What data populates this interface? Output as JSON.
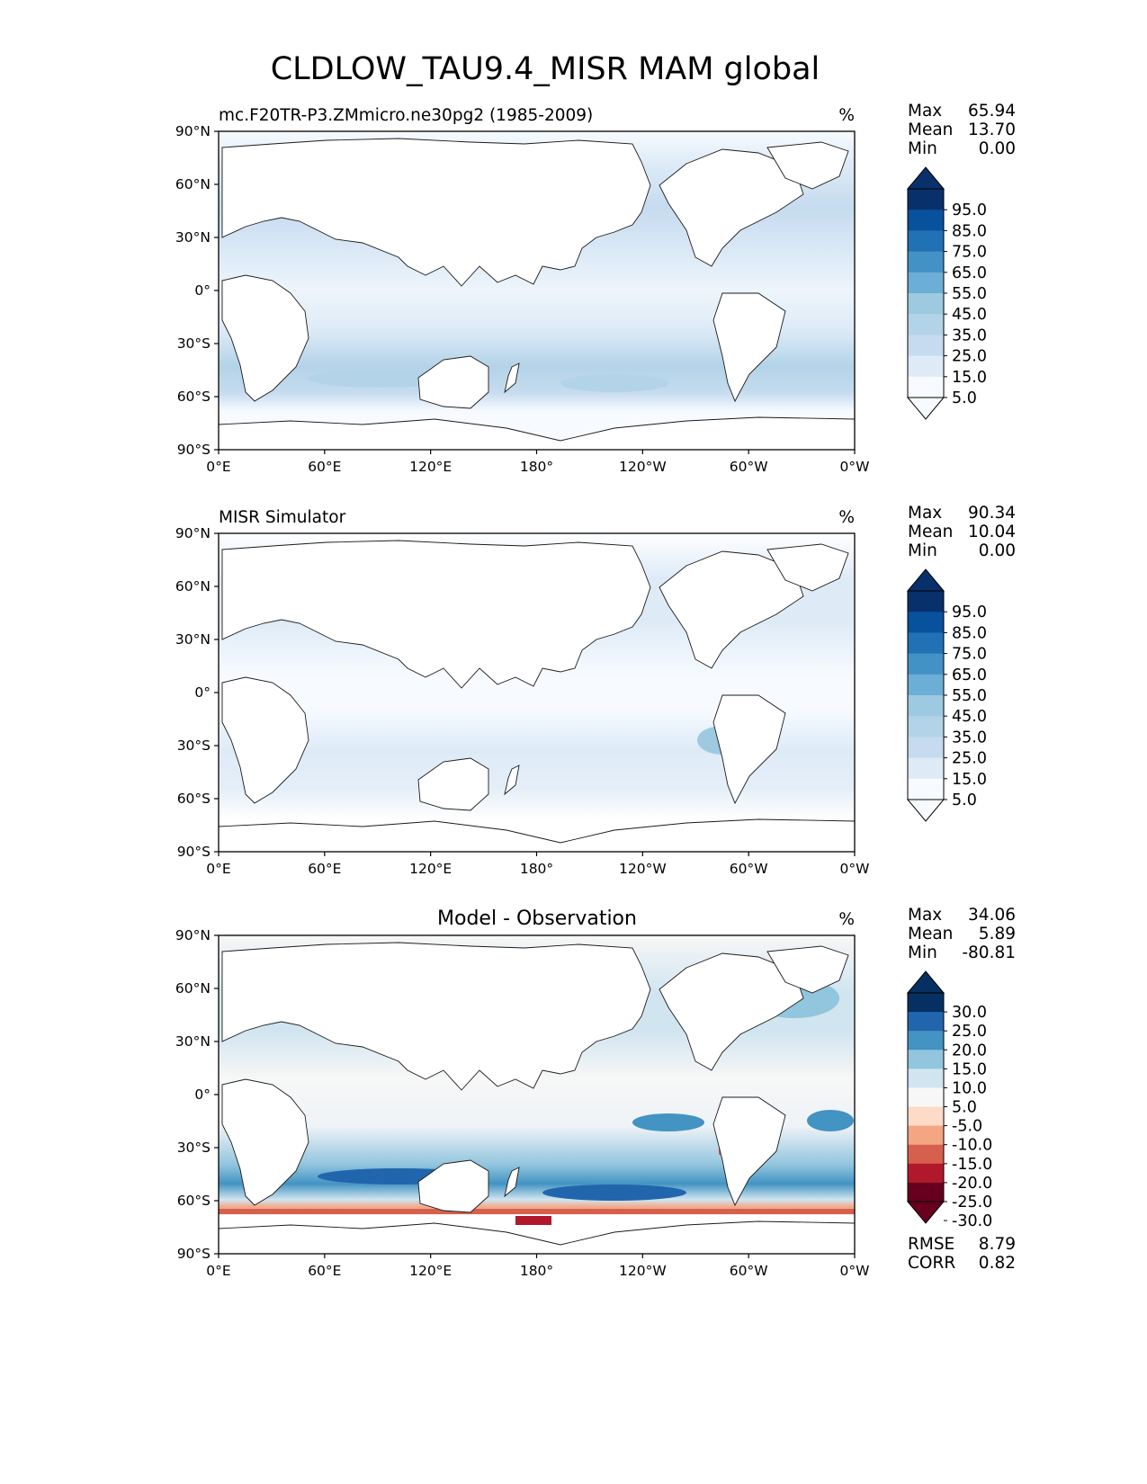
{
  "figure": {
    "title": "CLDLOW_TAU9.4_MISR MAM global",
    "x_ticks": [
      "0°E",
      "60°E",
      "120°E",
      "180°",
      "120°W",
      "60°W",
      "0°W"
    ],
    "y_ticks": [
      "90°N",
      "60°N",
      "30°N",
      "0°",
      "30°S",
      "60°S",
      "90°S"
    ],
    "units": "%"
  },
  "colormaps": {
    "blues": [
      "#f7fbff",
      "#deebf7",
      "#c6dbef",
      "#b3d3e8",
      "#9ecae1",
      "#6baed6",
      "#4292c6",
      "#2171b5",
      "#08519c",
      "#08306b"
    ],
    "diverging": [
      "#67001f",
      "#b2182b",
      "#d6604d",
      "#f4a582",
      "#fddbc7",
      "#f7f7f7",
      "#d1e5f0",
      "#92c5de",
      "#4393c3",
      "#2166ac",
      "#053061"
    ]
  },
  "chart_data": [
    {
      "type": "heatmap",
      "panel": "test",
      "title": "mc.F20TR-P3.ZMmicro.ne30pg2 (1985-2009)",
      "units": "%",
      "stats": [
        {
          "label": "Max",
          "value": "65.94"
        },
        {
          "label": "Mean",
          "value": "13.70"
        },
        {
          "label": "Min",
          "value": "0.00"
        }
      ],
      "colorbar": {
        "levels": [
          "95.0",
          "85.0",
          "75.0",
          "65.0",
          "55.0",
          "45.0",
          "35.0",
          "25.0",
          "15.0",
          "5.0"
        ],
        "extend": "both"
      },
      "xlim": [
        0,
        360
      ],
      "ylim": [
        -90,
        90
      ]
    },
    {
      "type": "heatmap",
      "panel": "reference",
      "title": "MISR Simulator",
      "units": "%",
      "stats": [
        {
          "label": "Max",
          "value": "90.34"
        },
        {
          "label": "Mean",
          "value": "10.04"
        },
        {
          "label": "Min",
          "value": "0.00"
        }
      ],
      "colorbar": {
        "levels": [
          "95.0",
          "85.0",
          "75.0",
          "65.0",
          "55.0",
          "45.0",
          "35.0",
          "25.0",
          "15.0",
          "5.0"
        ],
        "extend": "both"
      },
      "xlim": [
        0,
        360
      ],
      "ylim": [
        -90,
        90
      ]
    },
    {
      "type": "heatmap",
      "panel": "difference",
      "title": "Model - Observation",
      "units": "%",
      "stats": [
        {
          "label": "Max",
          "value": "34.06"
        },
        {
          "label": "Mean",
          "value": "5.89"
        },
        {
          "label": "Min",
          "value": "-80.81"
        }
      ],
      "colorbar": {
        "levels": [
          "30.0",
          "25.0",
          "20.0",
          "15.0",
          "10.0",
          "5.0",
          "-5.0",
          "-10.0",
          "-15.0",
          "-20.0",
          "-25.0",
          "-30.0"
        ],
        "extend": "both"
      },
      "metrics": [
        {
          "label": "RMSE",
          "value": "8.79"
        },
        {
          "label": "CORR",
          "value": "0.82"
        }
      ],
      "xlim": [
        0,
        360
      ],
      "ylim": [
        -90,
        90
      ]
    }
  ]
}
